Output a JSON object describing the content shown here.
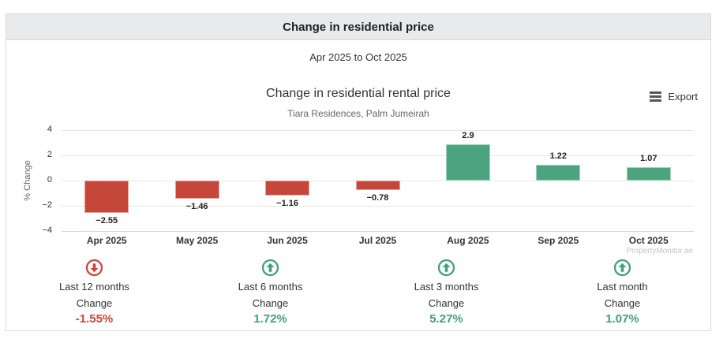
{
  "header": {
    "title": "Change in residential price"
  },
  "period": {
    "label": "Apr 2025 to Oct 2025"
  },
  "chart": {
    "export_label": "Export",
    "watermark": "PropertyMonitor.ae"
  },
  "chart_data": {
    "type": "bar",
    "title": "Change in residential rental price",
    "subtitle": "Tiara Residences, Palm Jumeirah",
    "categories": [
      "Apr 2025",
      "May 2025",
      "Jun 2025",
      "Jul 2025",
      "Aug 2025",
      "Sep 2025",
      "Oct 2025"
    ],
    "values": [
      -2.55,
      -1.46,
      -1.16,
      -0.78,
      2.9,
      1.22,
      1.07
    ],
    "xlabel": "",
    "ylabel": "% Change",
    "ylim": [
      -4,
      4
    ],
    "yticks": [
      4,
      2,
      0,
      -2,
      -4
    ],
    "grid": true,
    "legend": false,
    "positive_color": "#4ba47d",
    "negative_color": "#c5473a"
  },
  "summary": {
    "cards": [
      {
        "label": "Last 12 months",
        "sublabel": "Change",
        "value": "-1.55%",
        "direction": "down",
        "color": "#cc4439"
      },
      {
        "label": "Last 6 months",
        "sublabel": "Change",
        "value": "1.72%",
        "direction": "up",
        "color": "#3fa07a"
      },
      {
        "label": "Last 3 months",
        "sublabel": "Change",
        "value": "5.27%",
        "direction": "up",
        "color": "#3fa07a"
      },
      {
        "label": "Last month",
        "sublabel": "Change",
        "value": "1.07%",
        "direction": "up",
        "color": "#3fa07a"
      }
    ]
  }
}
